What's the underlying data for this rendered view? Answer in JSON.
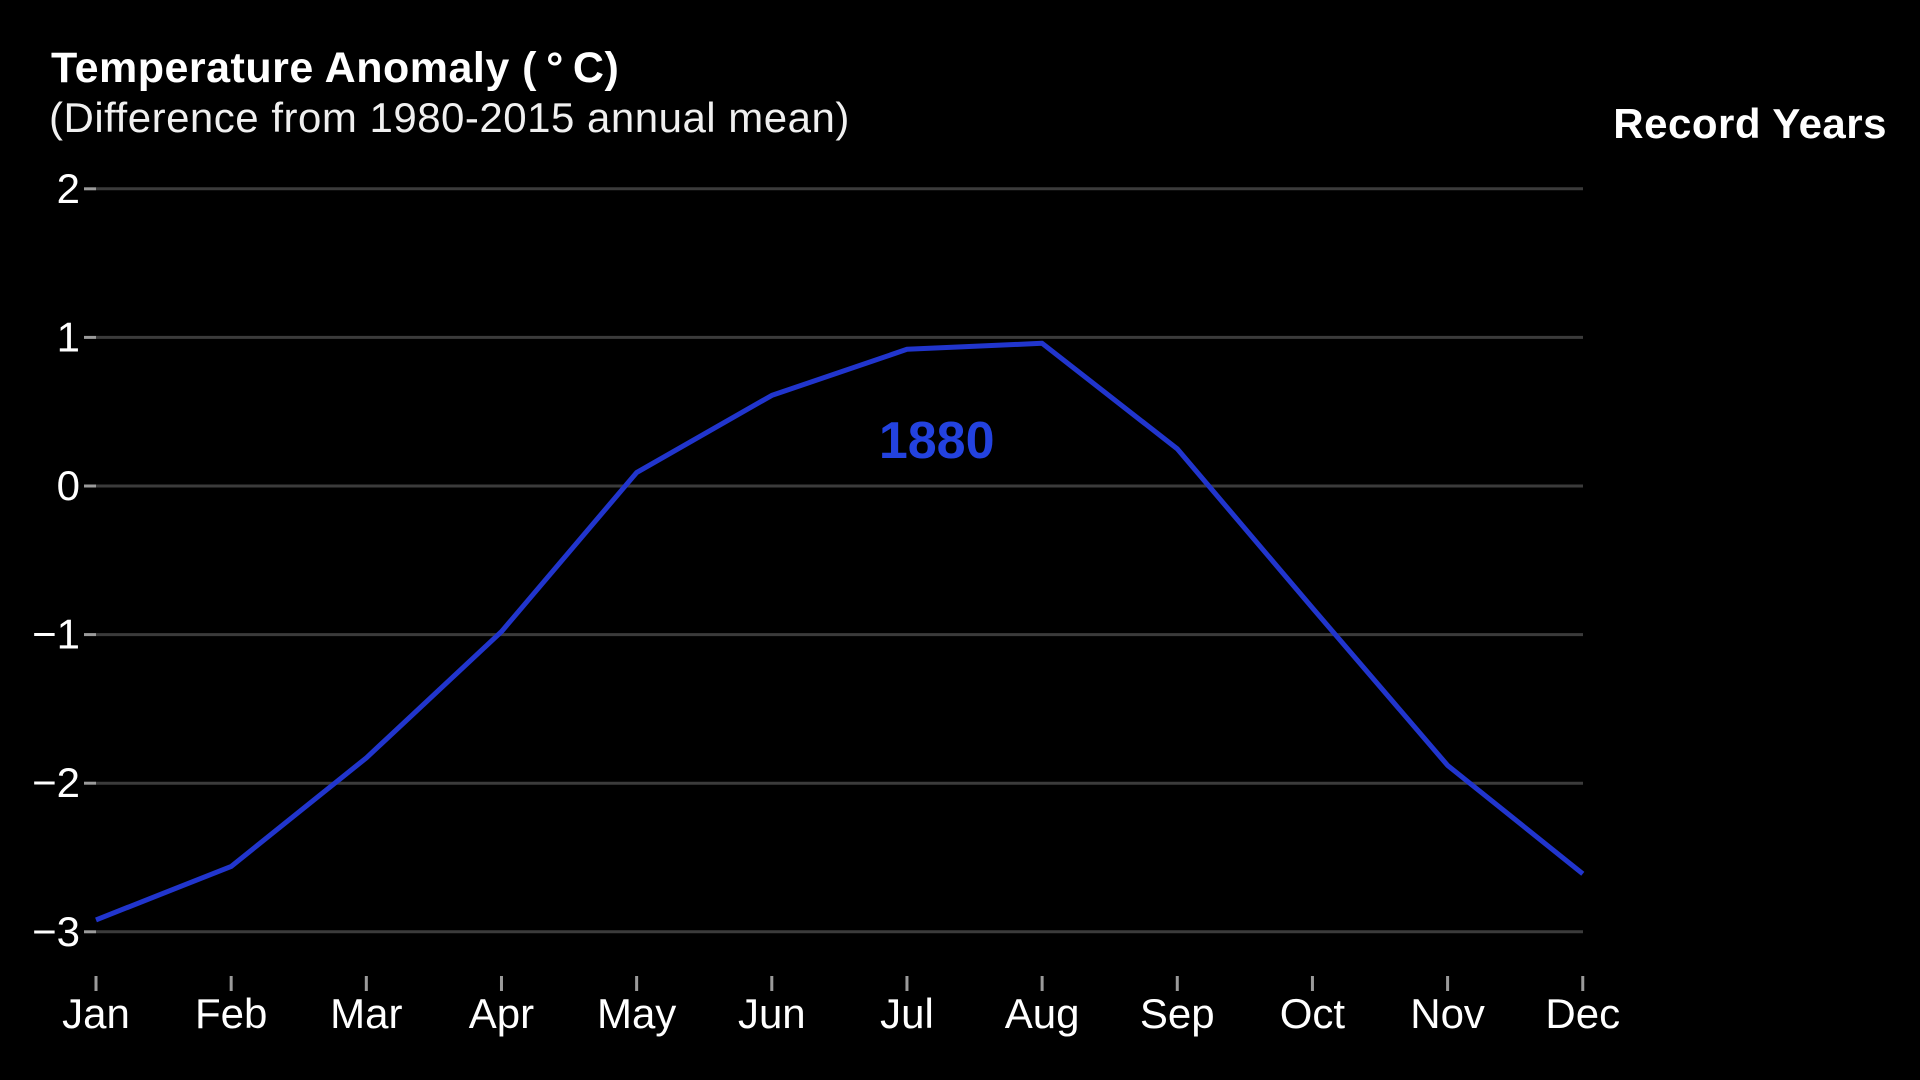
{
  "header": {
    "title": "Temperature Anomaly ( ° C)",
    "subtitle": "(Difference from 1980-2015 annual mean)",
    "legend_title": "Record Years"
  },
  "colors": {
    "background": "#000000",
    "text": "#ffffff",
    "gridline": "#3b3b3b",
    "tick": "#9b9b9b",
    "series_line": "#2135cd",
    "series_label": "#2342df"
  },
  "chart_data": {
    "type": "line",
    "title": "Temperature Anomaly (°C)",
    "subtitle": "(Difference from 1980-2015 annual mean)",
    "legend_title": "Record Years",
    "legend_position": "top-right",
    "grid": "horizontal-only",
    "categories": [
      "Jan",
      "Feb",
      "Mar",
      "Apr",
      "May",
      "Jun",
      "Jul",
      "Aug",
      "Sep",
      "Oct",
      "Nov",
      "Dec"
    ],
    "series": [
      {
        "name": "1880",
        "values": [
          -2.92,
          -2.56,
          -1.83,
          -0.98,
          0.09,
          0.61,
          0.92,
          0.96,
          0.25,
          -0.82,
          -1.88,
          -2.61
        ],
        "color": "#2135cd",
        "label": {
          "text": "1880",
          "x_month": 6.22,
          "y_value": 0.31,
          "color": "#2342df"
        }
      }
    ],
    "yticks": [
      2,
      1,
      0,
      -1,
      -2,
      -3
    ],
    "ylim": [
      -3.3,
      2.3
    ],
    "xlabel": "",
    "ylabel": "Temperature Anomaly (°C)"
  }
}
